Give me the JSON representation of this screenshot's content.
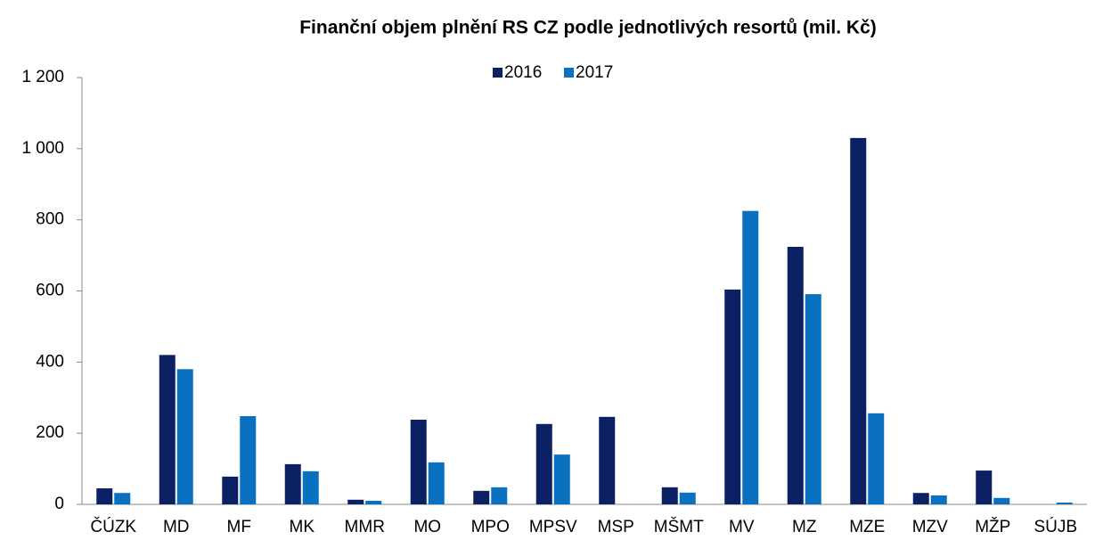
{
  "chart_data": {
    "type": "bar",
    "title": "Finanční objem plnění RS CZ podle jednotlivých resortů (mil. Kč)",
    "categories": [
      "ČÚZK",
      "MD",
      "MF",
      "MK",
      "MMR",
      "MO",
      "MPO",
      "MPSV",
      "MSP",
      "MŠMT",
      "MV",
      "MZ",
      "MZE",
      "MZV",
      "MŽP",
      "SÚJB"
    ],
    "series": [
      {
        "name": "2016",
        "color": "#0c2163",
        "values": [
          45,
          420,
          78,
          113,
          13,
          238,
          38,
          226,
          246,
          48,
          604,
          724,
          1030,
          32,
          95,
          0
        ]
      },
      {
        "name": "2017",
        "color": "#0a70c0",
        "values": [
          32,
          380,
          248,
          93,
          10,
          118,
          48,
          140,
          0,
          33,
          825,
          591,
          256,
          25,
          18,
          5
        ]
      }
    ],
    "ylim": [
      0,
      1200
    ],
    "yticks": [
      0,
      200,
      400,
      600,
      800,
      {
        "value": 1000,
        "label": "1 000"
      },
      {
        "value": 1200,
        "label": "1 200"
      }
    ],
    "legend": "top"
  }
}
